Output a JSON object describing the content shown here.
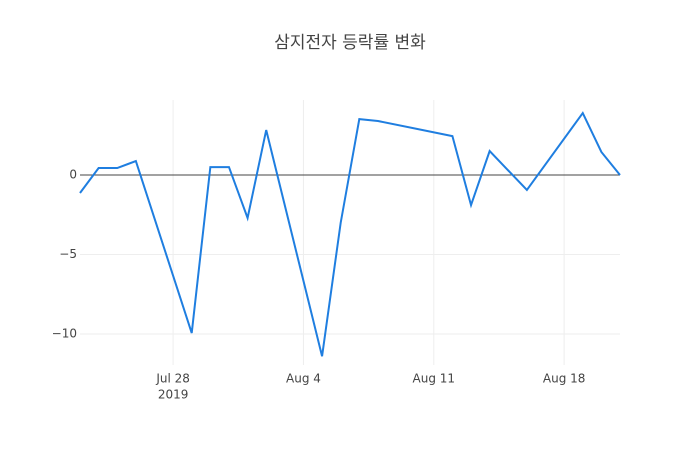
{
  "chart_data": {
    "type": "line",
    "title": "삼지전자 등락률 변화",
    "x": [
      "2019-07-23",
      "2019-07-24",
      "2019-07-25",
      "2019-07-26",
      "2019-07-29",
      "2019-07-30",
      "2019-07-31",
      "2019-08-01",
      "2019-08-02",
      "2019-08-05",
      "2019-08-06",
      "2019-08-07",
      "2019-08-08",
      "2019-08-12",
      "2019-08-13",
      "2019-08-14",
      "2019-08-16",
      "2019-08-19",
      "2019-08-20",
      "2019-08-21"
    ],
    "series": [
      {
        "name": "등락률",
        "color": "#1f7ee0",
        "values": [
          -1.13,
          0.44,
          0.44,
          0.88,
          -9.94,
          0.5,
          0.5,
          -2.7,
          2.83,
          -11.4,
          -3.0,
          3.52,
          3.4,
          2.45,
          -1.89,
          1.51,
          -0.94,
          3.9,
          1.45,
          0.0
        ]
      }
    ],
    "xlim": [
      "2019-07-23",
      "2019-08-21"
    ],
    "xticks": [
      {
        "value": "2019-07-28",
        "label": "Jul 28"
      },
      {
        "value": "2019-08-04",
        "label": "Aug 4"
      },
      {
        "value": "2019-08-11",
        "label": "Aug 11"
      },
      {
        "value": "2019-08-18",
        "label": "Aug 18"
      }
    ],
    "x_year_label": "2019",
    "ylim": [
      -11.95,
      4.72
    ],
    "yticks": [
      {
        "value": -10,
        "label": "−10"
      },
      {
        "value": -5,
        "label": "−5"
      },
      0
    ],
    "grid": true,
    "zeroline": true
  }
}
